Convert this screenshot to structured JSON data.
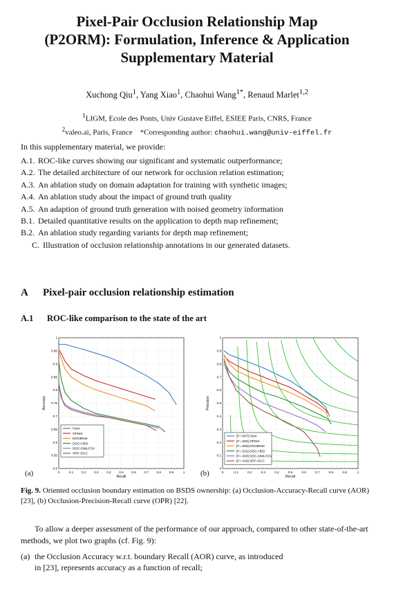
{
  "paper": {
    "title_lines": [
      "Pixel-Pair Occlusion Relationship Map",
      "(P2ORM): Formulation, Inference & Application",
      "Supplementary Material"
    ],
    "authors": [
      {
        "name": "Xuchong Qiu",
        "sup": "1"
      },
      {
        "name": "Yang Xiao",
        "sup": "1"
      },
      {
        "name": "Chaohui Wang",
        "sup": "1*"
      },
      {
        "name": "Renaud Marlet",
        "sup": "1,2"
      }
    ],
    "affiliation1": {
      "sup": "1",
      "text": "LIGM, Ecole des Ponts, Univ Gustave Eiffel, ESIEE Paris, CNRS, France"
    },
    "affiliation2": {
      "sup": "2",
      "text": "valeo.ai, Paris, France"
    },
    "corresponding_label": "*Corresponding author:",
    "corresponding_email": "chaohui.wang@univ-eiffel.fr",
    "intro": "In this supplementary material, we provide:",
    "contents": [
      {
        "label": "A.1.",
        "text": "ROC-like curves showing our significant and systematic outperformance;"
      },
      {
        "label": "A.2.",
        "text": "The detailed architecture of our network for occlusion relation estimation;"
      },
      {
        "label": "A.3.",
        "text": "An ablation study on domain adaptation for training with synthetic images;"
      },
      {
        "label": "A.4.",
        "text": "An ablation study about the impact of ground truth quality"
      },
      {
        "label": "A.5.",
        "text": "An adaption of ground truth generation with noised geometry information"
      },
      {
        "label": "B.1.",
        "text": "Detailed quantitative results on the application to depth map refinement;"
      },
      {
        "label": "B.2.",
        "text": "An ablation study regarding variants for depth map refinement;"
      },
      {
        "label": "C.",
        "text": "Illustration of occlusion relationship annotations in our generated datasets."
      }
    ],
    "section": {
      "number": "A",
      "title": "Pixel-pair occlusion relationship estimation"
    },
    "subsection": {
      "number": "A.1",
      "title": "ROC-like comparison to the state of the art"
    },
    "caption": {
      "label": "Fig. 9.",
      "text": "Oriented occlusion boundary estimation on BSDS ownership: (a) Occlusion-Accuracy-Recall curve (AOR) [23], (b) Occlusion-Precision-Recall curve (OPR) [22]."
    },
    "paragraph": "To allow a deeper assessment of the performance of our approach, compared to other state-of-the-art methods, we plot two graphs (cf. Fig. 9):",
    "item_a": {
      "label": "(a)",
      "line1": "the Occlusion Accuracy w.r.t. boundary Recall (AOR) curve, as introduced",
      "line2": "in [23], represents accuracy as a function of recall;"
    }
  },
  "colors": {
    "Ours": "#3b7fc4",
    "OFNet": "#d42a2a",
    "DOOBNet": "#f0901e",
    "DOC-HED": "#2f8f2f",
    "DOC-DMLFOV": "#9a6ec9",
    "SRF-OCC": "#8c5a4b",
    "isoF": "#22bb22"
  },
  "chart_data": [
    {
      "type": "line",
      "sublabel": "(a)",
      "xlabel": "Recall",
      "ylabel": "Accuracy",
      "xlim": [
        0,
        1
      ],
      "ylim": [
        0.5,
        1
      ],
      "xticks": [
        "0",
        "0.1",
        "0.2",
        "0.3",
        "0.4",
        "0.5",
        "0.6",
        "0.7",
        "0.8",
        "0.9",
        "1"
      ],
      "yticks": [
        "0.5",
        "0.55",
        "0.6",
        "0.65",
        "0.7",
        "0.75",
        "0.8",
        "0.85",
        "0.9",
        "0.95",
        "1"
      ],
      "grid": true,
      "legend": "bottom-left",
      "series": [
        {
          "name": "Ours",
          "x": [
            0.0,
            0.05,
            0.1,
            0.2,
            0.3,
            0.4,
            0.5,
            0.6,
            0.7,
            0.8,
            0.88,
            0.94
          ],
          "y": [
            0.975,
            0.975,
            0.968,
            0.955,
            0.94,
            0.925,
            0.905,
            0.88,
            0.855,
            0.825,
            0.79,
            0.745
          ]
        },
        {
          "name": "OFNet",
          "x": [
            0.0,
            0.02,
            0.05,
            0.1,
            0.2,
            0.3,
            0.4,
            0.5,
            0.6,
            0.7,
            0.77
          ],
          "y": [
            0.955,
            0.94,
            0.91,
            0.88,
            0.855,
            0.835,
            0.82,
            0.805,
            0.79,
            0.775,
            0.765
          ]
        },
        {
          "name": "DOOBNet",
          "x": [
            0.0,
            0.02,
            0.05,
            0.1,
            0.2,
            0.3,
            0.4,
            0.5,
            0.6,
            0.7,
            0.77
          ],
          "y": [
            0.95,
            0.92,
            0.88,
            0.85,
            0.82,
            0.8,
            0.785,
            0.77,
            0.755,
            0.74,
            0.72
          ]
        },
        {
          "name": "DOC-HED",
          "x": [
            0.0,
            0.02,
            0.05,
            0.1,
            0.2,
            0.3,
            0.4,
            0.5,
            0.6,
            0.7,
            0.8,
            0.85
          ],
          "y": [
            0.91,
            0.84,
            0.79,
            0.76,
            0.73,
            0.71,
            0.7,
            0.69,
            0.68,
            0.67,
            0.66,
            0.64
          ]
        },
        {
          "name": "DOC-DMLFOV",
          "x": [
            0.0,
            0.02,
            0.05,
            0.1,
            0.2,
            0.3,
            0.4,
            0.5,
            0.6,
            0.7,
            0.8
          ],
          "y": [
            0.82,
            0.77,
            0.745,
            0.73,
            0.715,
            0.705,
            0.695,
            0.685,
            0.675,
            0.665,
            0.655
          ]
        },
        {
          "name": "SRF-OCC",
          "x": [
            0.0,
            0.01,
            0.03,
            0.05,
            0.1,
            0.2,
            0.3,
            0.4,
            0.5,
            0.6,
            0.7,
            0.78
          ],
          "y": [
            0.83,
            0.8,
            0.76,
            0.74,
            0.725,
            0.71,
            0.7,
            0.695,
            0.685,
            0.675,
            0.665,
            0.645
          ]
        }
      ]
    },
    {
      "type": "line",
      "sublabel": "(b)",
      "xlabel": "Recall",
      "ylabel": "Precision",
      "xlim": [
        0,
        1
      ],
      "ylim": [
        0,
        1
      ],
      "xticks": [
        "0",
        "0.1",
        "0.2",
        "0.3",
        "0.4",
        "0.5",
        "0.6",
        "0.7",
        "0.8",
        "0.9",
        "1"
      ],
      "yticks": [
        "0",
        "0.1",
        "0.2",
        "0.3",
        "0.4",
        "0.5",
        "0.6",
        "0.7",
        "0.8",
        "0.9",
        "1"
      ],
      "grid": true,
      "legend": "bottom-left",
      "iso_f": [
        0.1,
        0.2,
        0.3,
        0.4,
        0.5,
        0.6,
        0.7,
        0.8,
        0.9
      ],
      "series": [
        {
          "name": "Ours",
          "legend_label": "[F=.607] Ours",
          "x": [
            0.01,
            0.05,
            0.1,
            0.2,
            0.3,
            0.4,
            0.5,
            0.6,
            0.7,
            0.76,
            0.79
          ],
          "y": [
            0.9,
            0.87,
            0.85,
            0.81,
            0.77,
            0.72,
            0.67,
            0.6,
            0.53,
            0.47,
            0.4
          ]
        },
        {
          "name": "OFNet",
          "legend_label": "[F=.583] OFNet",
          "x": [
            0.01,
            0.05,
            0.1,
            0.2,
            0.3,
            0.4,
            0.5,
            0.6,
            0.7,
            0.76,
            0.78
          ],
          "y": [
            0.86,
            0.82,
            0.79,
            0.74,
            0.7,
            0.66,
            0.62,
            0.56,
            0.5,
            0.45,
            0.42
          ]
        },
        {
          "name": "DOOBNet",
          "legend_label": "[F=.555] DOOBNet",
          "x": [
            0.01,
            0.05,
            0.1,
            0.2,
            0.3,
            0.4,
            0.5,
            0.6,
            0.7,
            0.76,
            0.78
          ],
          "y": [
            0.87,
            0.8,
            0.75,
            0.7,
            0.66,
            0.62,
            0.58,
            0.53,
            0.47,
            0.43,
            0.39
          ]
        },
        {
          "name": "DOC-HED",
          "legend_label": "[F=.522] DOC-HED",
          "x": [
            0.01,
            0.05,
            0.1,
            0.2,
            0.3,
            0.4,
            0.5,
            0.6,
            0.7,
            0.78,
            0.8
          ],
          "y": [
            0.82,
            0.74,
            0.69,
            0.63,
            0.58,
            0.55,
            0.51,
            0.47,
            0.42,
            0.38,
            0.34
          ]
        },
        {
          "name": "DOC-DMLFOV",
          "legend_label": "[F=.463] DOC-DMLFOV",
          "x": [
            0.01,
            0.05,
            0.1,
            0.2,
            0.3,
            0.4,
            0.5,
            0.6,
            0.7,
            0.76
          ],
          "y": [
            0.8,
            0.7,
            0.63,
            0.56,
            0.5,
            0.46,
            0.42,
            0.38,
            0.33,
            0.28
          ]
        },
        {
          "name": "SRF-OCC",
          "legend_label": "[F=.419] SRF-OCC",
          "x": [
            0.01,
            0.05,
            0.1,
            0.2,
            0.3,
            0.4,
            0.5,
            0.6,
            0.65,
            0.7,
            0.72
          ],
          "y": [
            0.84,
            0.7,
            0.6,
            0.5,
            0.44,
            0.39,
            0.34,
            0.28,
            0.22,
            0.15,
            0.09
          ]
        }
      ]
    }
  ]
}
